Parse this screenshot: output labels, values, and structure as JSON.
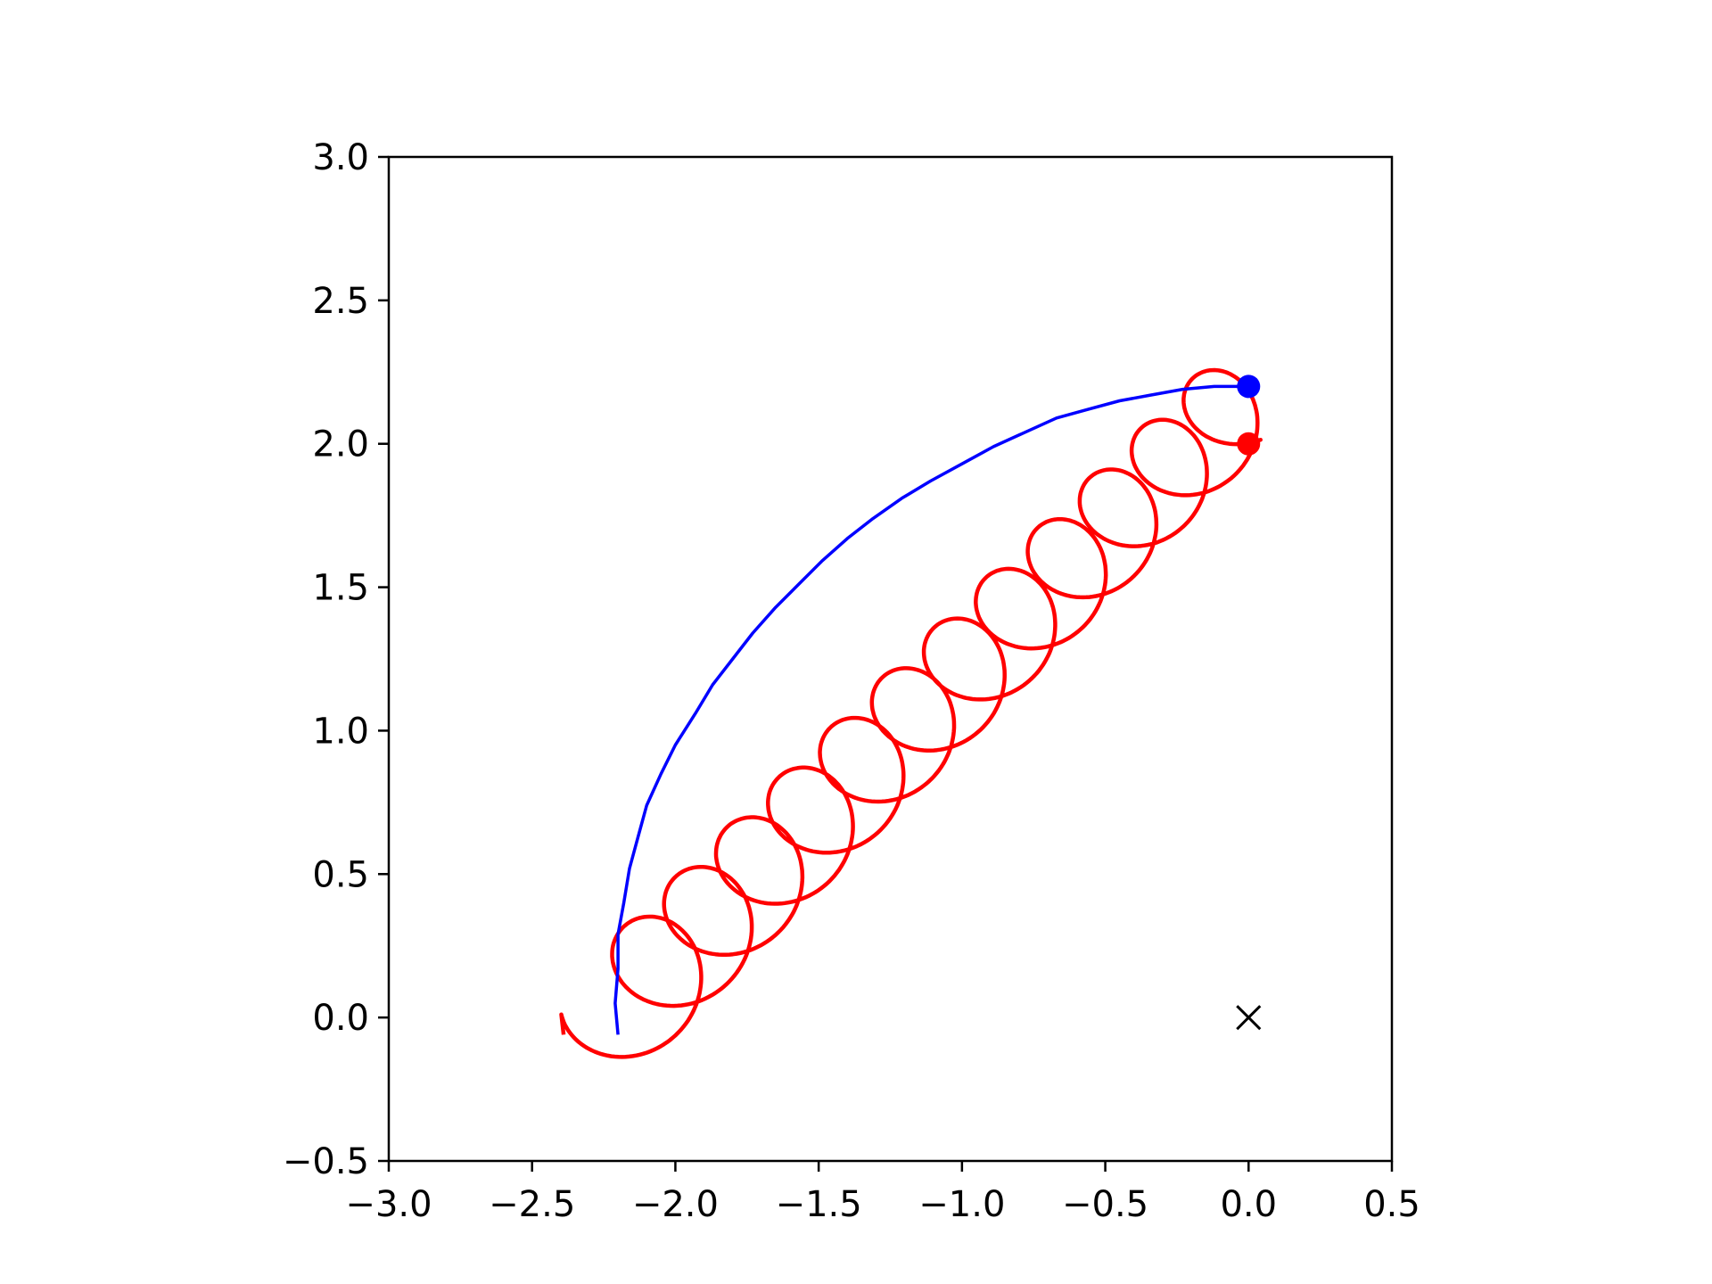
{
  "chart_data": {
    "type": "line",
    "title": "",
    "xlabel": "",
    "ylabel": "",
    "xlim": [
      -3.0,
      0.5
    ],
    "ylim": [
      -0.5,
      3.0
    ],
    "grid": false,
    "legend": "none",
    "x_ticks": [
      -3.0,
      -2.5,
      -2.0,
      -1.5,
      -1.0,
      -0.5,
      0.0,
      0.5
    ],
    "y_ticks": [
      -0.5,
      0.0,
      0.5,
      1.0,
      1.5,
      2.0,
      2.5,
      3.0
    ],
    "x_tick_labels": [
      "−3.0",
      "−2.5",
      "−2.0",
      "−1.5",
      "−1.0",
      "−0.5",
      "0.0",
      "0.5"
    ],
    "y_tick_labels": [
      "−0.5",
      "0.0",
      "0.5",
      "1.0",
      "1.5",
      "2.0",
      "2.5",
      "3.0"
    ],
    "series": [
      {
        "color": "#0000ff",
        "role": "center path",
        "points": [
          [
            -2.2,
            -0.06
          ],
          [
            -2.21,
            0.05
          ],
          [
            -2.2,
            0.17
          ],
          [
            -2.2,
            0.29
          ],
          [
            -2.18,
            0.4
          ],
          [
            -2.16,
            0.52
          ],
          [
            -2.13,
            0.63
          ],
          [
            -2.1,
            0.74
          ],
          [
            -2.05,
            0.85
          ],
          [
            -2.0,
            0.95
          ],
          [
            -1.93,
            1.06
          ],
          [
            -1.87,
            1.16
          ],
          [
            -1.8,
            1.25
          ],
          [
            -1.73,
            1.34
          ],
          [
            -1.65,
            1.43
          ],
          [
            -1.57,
            1.51
          ],
          [
            -1.49,
            1.59
          ],
          [
            -1.4,
            1.67
          ],
          [
            -1.31,
            1.74
          ],
          [
            -1.21,
            1.81
          ],
          [
            -1.11,
            1.87
          ],
          [
            -1.0,
            1.93
          ],
          [
            -0.89,
            1.99
          ],
          [
            -0.78,
            2.04
          ],
          [
            -0.67,
            2.09
          ],
          [
            -0.56,
            2.12
          ],
          [
            -0.45,
            2.15
          ],
          [
            -0.34,
            2.17
          ],
          [
            -0.23,
            2.19
          ],
          [
            -0.12,
            2.2
          ],
          [
            0.0,
            2.2
          ]
        ]
      },
      {
        "color": "#ff0000",
        "role": "cycloid path",
        "path": {
          "p0": [
            -2.39,
            -0.06
          ],
          "p1": [
            0.0,
            2.0
          ],
          "loops": 12.3,
          "phase0": 3.14,
          "radius": [
            0.2,
            0.17
          ],
          "drift_x": [
            -2.2,
            0.0
          ],
          "drift_y": [
            0.02,
            2.18
          ]
        }
      }
    ],
    "markers": [
      {
        "shape": "dot",
        "color": "#0000ff",
        "x": 0.0,
        "y": 2.2
      },
      {
        "shape": "dot",
        "color": "#ff0000",
        "x": 0.0,
        "y": 2.0
      },
      {
        "shape": "x",
        "color": "#000000",
        "x": 0.0,
        "y": 0.0
      }
    ]
  }
}
